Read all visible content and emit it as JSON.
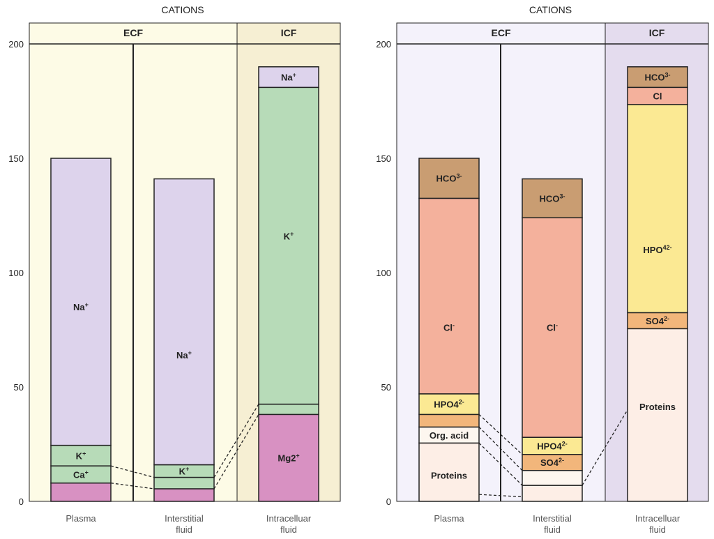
{
  "chart_data": [
    {
      "type": "stacked-bar",
      "title": "CATIONS",
      "groups": [
        {
          "label": "ECF",
          "color": "#fdfbe6",
          "categories": [
            "Plasma",
            "Interstitial fluid"
          ]
        },
        {
          "label": "ICF",
          "color": "#f6efd3",
          "categories": [
            "Intracelluar fluid"
          ]
        }
      ],
      "categories": [
        {
          "label": "Plasma",
          "lines": [
            "Plasma"
          ]
        },
        {
          "label": "Interstitial fluid",
          "lines": [
            "Interstitial",
            "fluid"
          ]
        },
        {
          "label": "Intracelluar fluid",
          "lines": [
            "Intracelluar",
            "fluid"
          ]
        }
      ],
      "ylim": [
        0,
        200
      ],
      "yticks": [
        0,
        50,
        100,
        150,
        200
      ],
      "stacks": [
        {
          "category": "Plasma",
          "segments": [
            {
              "from": 0,
              "to": 8,
              "color": "#d891c2",
              "label": ""
            },
            {
              "from": 8,
              "to": 15.5,
              "color": "#b7dbb8",
              "label": "Ca",
              "sup": "+"
            },
            {
              "from": 15.5,
              "to": 24.5,
              "color": "#b7dbb8",
              "label": "K",
              "sup": "+"
            },
            {
              "from": 24.5,
              "to": 150,
              "color": "#ddd3ec",
              "label": "Na",
              "sup": "+",
              "labelAt": 85
            }
          ]
        },
        {
          "category": "Interstitial fluid",
          "segments": [
            {
              "from": 0,
              "to": 5.5,
              "color": "#d891c2",
              "label": ""
            },
            {
              "from": 5.5,
              "to": 10.5,
              "color": "#b7dbb8",
              "label": ""
            },
            {
              "from": 10.5,
              "to": 16,
              "color": "#b7dbb8",
              "label": "K",
              "sup": "+"
            },
            {
              "from": 16,
              "to": 141,
              "color": "#ddd3ec",
              "label": "Na",
              "sup": "+",
              "labelAt": 64
            }
          ]
        },
        {
          "category": "Intracelluar fluid",
          "segments": [
            {
              "from": 0,
              "to": 38,
              "color": "#d891c2",
              "label": "Mg2",
              "sup": "+"
            },
            {
              "from": 38,
              "to": 42.5,
              "color": "#b7dbb8",
              "label": ""
            },
            {
              "from": 42.5,
              "to": 181,
              "color": "#b7dbb8",
              "label": "K",
              "sup": "+",
              "labelAt": 116
            }
          ]
        },
        {
          "category": "Intracelluar fluid",
          "segments": [
            {
              "from": 181,
              "to": 190,
              "color": "#ddd3ec",
              "label": "Na",
              "sup": "+"
            }
          ]
        }
      ],
      "connectors": [
        {
          "from_category": "Plasma",
          "to_category": "Interstitial fluid",
          "pairs": [
            [
              15.5,
              10.5
            ],
            [
              8,
              5.5
            ]
          ]
        },
        {
          "from_category": "Interstitial fluid",
          "to_category": "Intracelluar fluid",
          "pairs": [
            [
              10.5,
              42.5
            ],
            [
              5.5,
              38
            ]
          ]
        }
      ]
    },
    {
      "type": "stacked-bar",
      "title": "CATIONS",
      "groups": [
        {
          "label": "ECF",
          "color": "#f4f2fb",
          "categories": [
            "Plasma",
            "Interstitial fluid"
          ]
        },
        {
          "label": "ICF",
          "color": "#e4dcee",
          "categories": [
            "Intracelluar fluid"
          ]
        }
      ],
      "categories": [
        {
          "label": "Plasma",
          "lines": [
            "Plasma"
          ]
        },
        {
          "label": "Interstitial fluid",
          "lines": [
            "Interstitial",
            "fluid"
          ]
        },
        {
          "label": "Intracelluar fluid",
          "lines": [
            "Intracelluar",
            "fluid"
          ]
        }
      ],
      "ylim": [
        0,
        200
      ],
      "yticks": [
        0,
        50,
        100,
        150,
        200
      ],
      "stacks": [
        {
          "category": "Plasma",
          "segments": [
            {
              "from": 0,
              "to": 25.5,
              "color": "#fdeee6",
              "label": "Proteins",
              "labelAt": 11.5
            },
            {
              "from": 25.5,
              "to": 32.5,
              "color": "#fdf6ef",
              "label": "Org. acid"
            },
            {
              "from": 32.5,
              "to": 38,
              "color": "#f2b67b",
              "label": ""
            },
            {
              "from": 38,
              "to": 47,
              "color": "#fbe993",
              "label": "HPO4",
              "sup": "2-"
            },
            {
              "from": 47,
              "to": 132.5,
              "color": "#f4b19c",
              "label": "Cl",
              "sup": "-",
              "labelAt": 76
            },
            {
              "from": 132.5,
              "to": 150,
              "color": "#c99d72",
              "label": "HCO",
              "sup": "3-"
            }
          ]
        },
        {
          "category": "Interstitial fluid",
          "segments": [
            {
              "from": 0,
              "to": 7,
              "color": "#fdeee6",
              "label": ""
            },
            {
              "from": 7,
              "to": 13.5,
              "color": "#fdf6ef",
              "label": ""
            },
            {
              "from": 13.5,
              "to": 20.5,
              "color": "#f2b67b",
              "label": "SO4",
              "sup": "2-"
            },
            {
              "from": 20.5,
              "to": 28,
              "color": "#fbe993",
              "label": "HPO4",
              "sup": "2-"
            },
            {
              "from": 28,
              "to": 124,
              "color": "#f4b19c",
              "label": "Cl",
              "sup": "-",
              "labelAt": 76
            },
            {
              "from": 124,
              "to": 141,
              "color": "#c99d72",
              "label": "HCO",
              "sup": "3-"
            }
          ]
        },
        {
          "category": "Intracelluar fluid",
          "segments": [
            {
              "from": 0,
              "to": 75.5,
              "color": "#fdeee6",
              "label": "Proteins",
              "labelAt": 41.5
            },
            {
              "from": 75.5,
              "to": 82.5,
              "color": "#f2b67b",
              "label": "SO4",
              "sup": "2-"
            },
            {
              "from": 82.5,
              "to": 173.5,
              "color": "#fbe993",
              "label": "HPO",
              "sup": "42-",
              "labelAt": 110
            },
            {
              "from": 173.5,
              "to": 181,
              "color": "#f4b19c",
              "label": "Cl"
            },
            {
              "from": 181,
              "to": 190,
              "color": "#c99d72",
              "label": "HCO",
              "sup": "3-"
            }
          ]
        }
      ],
      "connectors": [
        {
          "from_category": "Plasma",
          "to_category": "Interstitial fluid",
          "pairs": [
            [
              38,
              20.5
            ],
            [
              32.5,
              13.5
            ],
            [
              25.5,
              7
            ],
            [
              3,
              2
            ]
          ]
        },
        {
          "from_category": "Interstitial fluid",
          "to_category": "Intracelluar fluid",
          "pairs": [
            [
              7,
              40
            ]
          ]
        }
      ]
    }
  ]
}
